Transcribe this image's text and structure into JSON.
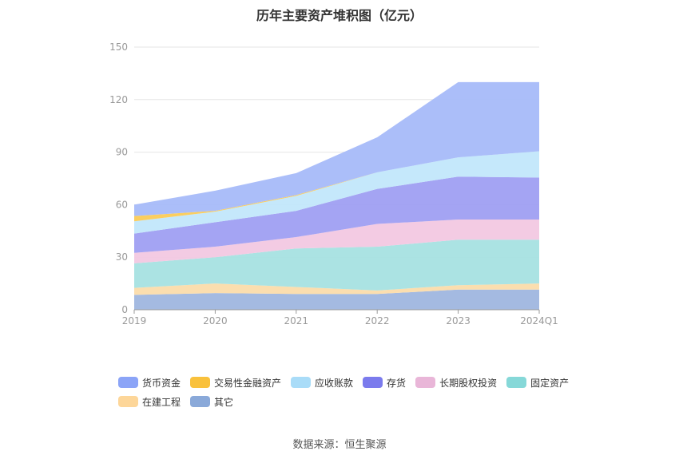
{
  "chart_data": {
    "type": "area",
    "stacked": true,
    "title": "历年主要资产堆积图（亿元）",
    "categories": [
      "2019",
      "2020",
      "2021",
      "2022",
      "2023",
      "2024Q1"
    ],
    "ylim": [
      0,
      150
    ],
    "yticks": [
      0,
      30,
      60,
      90,
      120,
      150
    ],
    "grid": true,
    "legend_position": "bottom",
    "series": [
      {
        "name": "其它",
        "color": "#9fb6df",
        "values": [
          8.5,
          9.5,
          9.0,
          9.0,
          11.5,
          11.5
        ]
      },
      {
        "name": "在建工程",
        "color": "#fbdcab",
        "values": [
          4.0,
          5.5,
          4.0,
          2.0,
          2.5,
          3.5
        ]
      },
      {
        "name": "固定资产",
        "color": "#a6e2e2",
        "values": [
          14.0,
          15.0,
          22.0,
          25.0,
          26.0,
          25.0
        ]
      },
      {
        "name": "长期股权投资",
        "color": "#f2c8e2",
        "values": [
          6.0,
          6.0,
          6.5,
          13.0,
          11.5,
          11.5
        ]
      },
      {
        "name": "存货",
        "color": "#9f9ff2",
        "values": [
          11.0,
          14.0,
          15.0,
          20.0,
          24.5,
          24.0
        ]
      },
      {
        "name": "应收账款",
        "color": "#c2e7fb",
        "values": [
          7.0,
          6.0,
          8.5,
          9.5,
          11.0,
          15.0
        ]
      },
      {
        "name": "交易性金融资产",
        "color": "#fbcb56",
        "values": [
          3.0,
          0.5,
          0.5,
          0.0,
          0.0,
          0.0
        ]
      },
      {
        "name": "货币资金",
        "color": "#a6baf9",
        "values": [
          6.5,
          11.5,
          12.5,
          20.0,
          43.0,
          39.5
        ]
      }
    ]
  },
  "legend": [
    {
      "label": "货币资金",
      "color": "#8ba4f7"
    },
    {
      "label": "交易性金融资产",
      "color": "#f9c13c"
    },
    {
      "label": "应收账款",
      "color": "#a9dcf8"
    },
    {
      "label": "存货",
      "color": "#7b7bed"
    },
    {
      "label": "长期股权投资",
      "color": "#e9b6d8"
    },
    {
      "label": "固定资产",
      "color": "#86d8d8"
    },
    {
      "label": "在建工程",
      "color": "#fdd699"
    },
    {
      "label": "其它",
      "color": "#8aa9d9"
    }
  ],
  "source": "数据来源：恒生聚源"
}
